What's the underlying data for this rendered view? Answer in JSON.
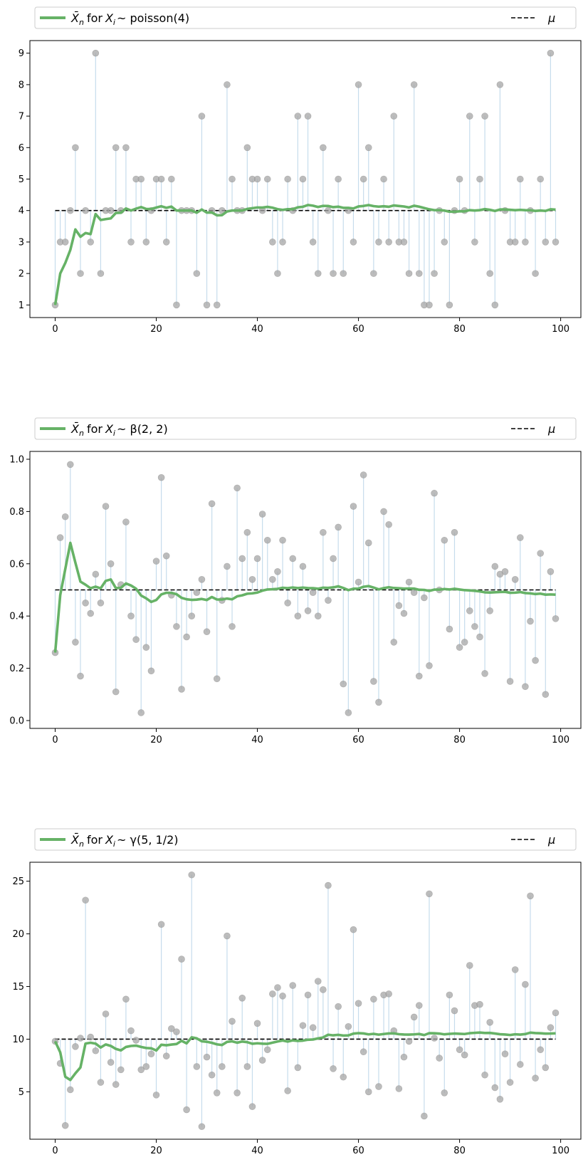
{
  "chart_data": [
    {
      "type": "line",
      "mean": 4,
      "samples": [
        1,
        3,
        3,
        4,
        6,
        2,
        4,
        3,
        9,
        2,
        4,
        4,
        6,
        4,
        6,
        3,
        5,
        5,
        3,
        4,
        5,
        5,
        3,
        5,
        1,
        4,
        4,
        4,
        2,
        7,
        1,
        4,
        1,
        4,
        8,
        5,
        4,
        4,
        6,
        5,
        5,
        4,
        5,
        3,
        2,
        3,
        5,
        4,
        7,
        5,
        7,
        3,
        2,
        6,
        4,
        2,
        5,
        2,
        4,
        3,
        8,
        5,
        6,
        2,
        3,
        5,
        3,
        7,
        3,
        3,
        2,
        8,
        2,
        1,
        1,
        2,
        4,
        3,
        1,
        4,
        5,
        4,
        7,
        3,
        5,
        7,
        2,
        1,
        8,
        4,
        3,
        3,
        5,
        3,
        4,
        2,
        5,
        3,
        9,
        3
      ],
      "xlim": [
        -5,
        104
      ],
      "ylim": [
        0.6,
        9.4
      ],
      "xticks": [
        0,
        20,
        40,
        60,
        80,
        100
      ],
      "yticks": [
        1,
        2,
        3,
        4,
        5,
        6,
        7,
        8,
        9
      ],
      "ytick_labels": [
        "1",
        "2",
        "3",
        "4",
        "5",
        "6",
        "7",
        "8",
        "9"
      ],
      "legend": {
        "placement": "top-above",
        "mean_series_prefix": "X̄",
        "mean_series_sub": "n",
        "mean_series_for": "for",
        "var_main": "X",
        "var_sub": "i",
        "distribution": "~ poisson(4)",
        "mu_label": "μ"
      }
    },
    {
      "type": "line",
      "mean": 0.5,
      "samples": [
        0.26,
        0.7,
        0.78,
        0.98,
        0.3,
        0.17,
        0.45,
        0.41,
        0.56,
        0.45,
        0.82,
        0.6,
        0.11,
        0.52,
        0.76,
        0.4,
        0.31,
        0.03,
        0.28,
        0.19,
        0.61,
        0.93,
        0.63,
        0.48,
        0.36,
        0.12,
        0.32,
        0.4,
        0.49,
        0.54,
        0.34,
        0.83,
        0.16,
        0.46,
        0.59,
        0.36,
        0.89,
        0.62,
        0.72,
        0.54,
        0.62,
        0.79,
        0.69,
        0.54,
        0.57,
        0.69,
        0.45,
        0.62,
        0.4,
        0.59,
        0.42,
        0.49,
        0.4,
        0.72,
        0.46,
        0.62,
        0.74,
        0.14,
        0.03,
        0.82,
        0.53,
        0.94,
        0.68,
        0.15,
        0.07,
        0.8,
        0.75,
        0.3,
        0.44,
        0.41,
        0.53,
        0.49,
        0.17,
        0.47,
        0.21,
        0.87,
        0.5,
        0.69,
        0.35,
        0.72,
        0.28,
        0.3,
        0.42,
        0.36,
        0.32,
        0.18,
        0.42,
        0.59,
        0.56,
        0.57,
        0.15,
        0.54,
        0.7,
        0.13,
        0.38,
        0.23,
        0.64,
        0.1,
        0.57,
        0.39
      ],
      "xlim": [
        -5,
        104
      ],
      "ylim": [
        -0.03,
        1.03
      ],
      "xticks": [
        0,
        20,
        40,
        60,
        80,
        100
      ],
      "yticks": [
        0,
        0.2,
        0.4,
        0.6,
        0.8,
        1.0
      ],
      "ytick_labels": [
        "0.0",
        "0.2",
        "0.4",
        "0.6",
        "0.8",
        "1.0"
      ],
      "legend": {
        "placement": "top-above",
        "mean_series_prefix": "X̄",
        "mean_series_sub": "n",
        "mean_series_for": "for",
        "var_main": "X",
        "var_sub": "i",
        "distribution": "~ β(2, 2)",
        "mu_label": "μ"
      }
    },
    {
      "type": "line",
      "mean": 10,
      "samples": [
        9.8,
        7.7,
        1.8,
        5.2,
        9.3,
        10.1,
        23.2,
        10.2,
        8.9,
        5.9,
        12.4,
        7.8,
        5.7,
        7.1,
        13.8,
        10.8,
        9.9,
        7.1,
        7.4,
        8.6,
        4.7,
        20.9,
        8.4,
        11,
        10.7,
        17.6,
        3.3,
        25.6,
        7.4,
        1.7,
        8.3,
        6.6,
        4.9,
        7.4,
        19.8,
        11.7,
        4.9,
        13.9,
        7.4,
        3.6,
        11.5,
        8,
        9,
        14.3,
        14.9,
        14.1,
        5.1,
        15.1,
        7.3,
        11.3,
        14.2,
        11.1,
        15.5,
        14.7,
        24.6,
        7.2,
        13.1,
        6.4,
        11.2,
        20.4,
        13.4,
        8.8,
        5,
        13.8,
        5.5,
        14.2,
        14.3,
        10.8,
        5.3,
        8.3,
        9.8,
        12.1,
        13.2,
        2.7,
        23.8,
        10.1,
        8.2,
        4.9,
        14.2,
        12.7,
        9,
        8.5,
        17,
        13.2,
        13.3,
        6.6,
        11.6,
        5.4,
        4.3,
        8.6,
        5.9,
        16.6,
        7.6,
        15.2,
        23.6,
        6.3,
        9,
        7.3,
        11.1,
        12.5
      ],
      "xlim": [
        -5,
        104
      ],
      "ylim": [
        0.5,
        26.8
      ],
      "xticks": [
        0,
        20,
        40,
        60,
        80,
        100
      ],
      "yticks": [
        5,
        10,
        15,
        20,
        25
      ],
      "ytick_labels": [
        "5",
        "10",
        "15",
        "20",
        "25"
      ],
      "legend": {
        "placement": "top-above",
        "mean_series_prefix": "X̄",
        "mean_series_sub": "n",
        "mean_series_for": "for",
        "var_main": "X",
        "var_sub": "i",
        "distribution": "~ γ(5, 1/2)",
        "mu_label": "μ"
      }
    }
  ],
  "colors": {
    "running_mean": "#66b266",
    "sample_points": "#a6a6a6",
    "stems": "#c6dcec",
    "mu_line": "#000000",
    "axes": "#000000",
    "legend_border": "#cccccc"
  }
}
